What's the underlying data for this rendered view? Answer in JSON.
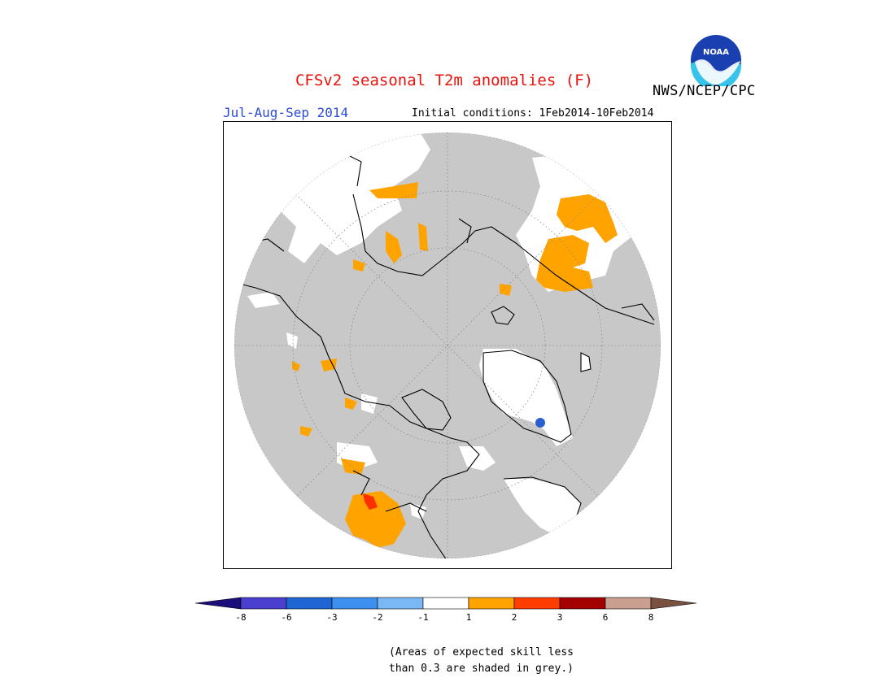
{
  "header": {
    "title": "CFSv2 seasonal T2m anomalies (F)",
    "agency": "NWS/NCEP/CPC",
    "period": "Jul-Aug-Sep 2014",
    "initial_conditions": "Initial conditions: 1Feb2014-10Feb2014",
    "logo_text": "NOAA"
  },
  "colorbar": {
    "colors": [
      "#1b0e7a",
      "#4b3fcf",
      "#1f66d4",
      "#3d8ff0",
      "#7ab8f5",
      "#ffffff",
      "#ffa300",
      "#ff3d00",
      "#a30000",
      "#c9a090",
      "#7a5040"
    ],
    "tick_labels": [
      "-8",
      "-6",
      "-3",
      "-2",
      "-1",
      "1",
      "2",
      "3",
      "6",
      "8"
    ]
  },
  "note": {
    "line1": "(Areas of expected skill less",
    "line2": "than 0.3 are shaded in grey.)"
  },
  "map": {
    "colors": {
      "grey": "#c8c8c8",
      "white": "#ffffff",
      "orange": "#ffa300",
      "red": "#ff3000",
      "blue": "#2a5fd0"
    }
  }
}
